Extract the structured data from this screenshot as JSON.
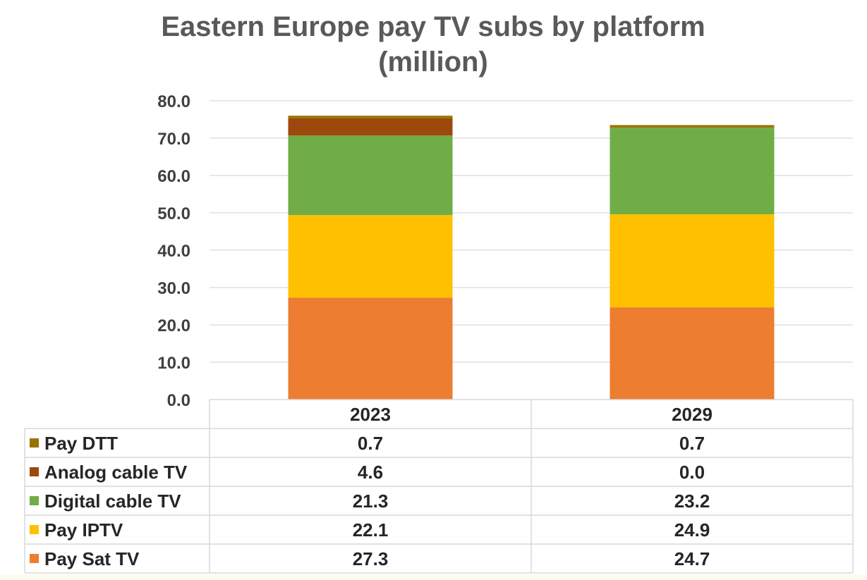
{
  "chart_data": {
    "type": "bar",
    "stacked": true,
    "title": [
      "Eastern Europe pay TV subs by platform",
      "(million)"
    ],
    "categories": [
      "2023",
      "2029"
    ],
    "ylim": [
      0,
      80
    ],
    "yticks": [
      "0.0",
      "10.0",
      "20.0",
      "30.0",
      "40.0",
      "50.0",
      "60.0",
      "70.0",
      "80.0"
    ],
    "grid": true,
    "legend": "data-table-left",
    "series": [
      {
        "name": "Pay Sat TV",
        "values": [
          27.3,
          24.7
        ],
        "labels": [
          "27.3",
          "24.7"
        ],
        "color": "#ed7d31"
      },
      {
        "name": "Pay IPTV",
        "values": [
          22.1,
          24.9
        ],
        "labels": [
          "22.1",
          "24.9"
        ],
        "color": "#ffc000"
      },
      {
        "name": "Digital cable TV",
        "values": [
          21.3,
          23.2
        ],
        "labels": [
          "21.3",
          "23.2"
        ],
        "color": "#70ad47"
      },
      {
        "name": "Analog cable TV",
        "values": [
          4.6,
          0.0
        ],
        "labels": [
          "4.6",
          "0.0"
        ],
        "color": "#9e480e"
      },
      {
        "name": "Pay DTT",
        "values": [
          0.7,
          0.7
        ],
        "labels": [
          "0.7",
          "0.7"
        ],
        "color": "#997300"
      }
    ]
  }
}
